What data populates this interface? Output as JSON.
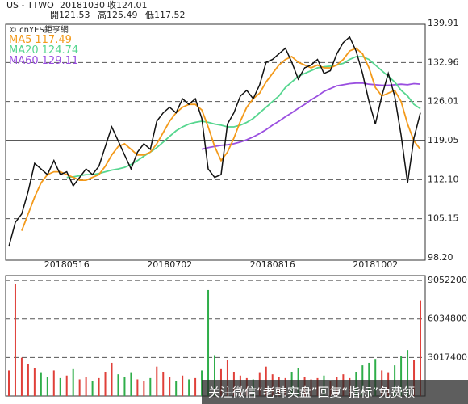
{
  "chart_data": {
    "type": "stock",
    "header": {
      "symbol": "US - TTWO",
      "date": "20181030",
      "close": "收124.01",
      "open": "開121.53",
      "high": "高125.49",
      "low": "低117.52"
    },
    "source": "© cnYES鉅亨網",
    "watermark": "关注微信“老韩实盘”回复“指标”免费领",
    "categories": [
      null,
      null,
      null,
      null,
      null,
      null,
      null,
      null,
      null,
      "20180516",
      null,
      null,
      null,
      null,
      null,
      null,
      null,
      null,
      null,
      null,
      null,
      null,
      null,
      null,
      null,
      "20180702",
      null,
      null,
      null,
      null,
      null,
      null,
      null,
      null,
      null,
      null,
      null,
      null,
      null,
      null,
      null,
      "20180816",
      null,
      null,
      null,
      null,
      null,
      null,
      null,
      null,
      null,
      null,
      null,
      null,
      null,
      null,
      null,
      "20181002",
      null,
      null,
      null,
      null,
      null,
      null,
      null
    ],
    "ylim": [
      98.2,
      139.91
    ],
    "yticks": [
      {
        "value": 98.2,
        "label": "98.20"
      },
      105.15,
      {
        "value": 112.1,
        "label": "112.10"
      },
      119.05,
      126.01,
      132.96,
      139.91
    ],
    "baseline": 119.05,
    "grid": true,
    "series": [
      {
        "name": "Close",
        "color": "#111111",
        "values": [
          100.2,
          104.5,
          106,
          110,
          115,
          114,
          113,
          115.5,
          113,
          113.5,
          111,
          112.5,
          114,
          113,
          114.5,
          118,
          121.5,
          119,
          116.5,
          114,
          117,
          118.5,
          117.5,
          122.5,
          124,
          125,
          124,
          126.5,
          125.5,
          126.5,
          123,
          114,
          112.5,
          113,
          122,
          124,
          127,
          128,
          126.5,
          129,
          133,
          133.5,
          134.5,
          135.5,
          133,
          130,
          132,
          132.5,
          133.5,
          131,
          131.5,
          134.5,
          136.5,
          137.5,
          135,
          131,
          126,
          122,
          127,
          131,
          127,
          120,
          111.5,
          119.5,
          124
        ]
      },
      {
        "name": "MA5",
        "color": "#f39a1b",
        "values": [
          null,
          null,
          103,
          106,
          109,
          111.5,
          113,
          113.5,
          113.5,
          113,
          112.5,
          112,
          112,
          112.5,
          113,
          114.5,
          116.5,
          118,
          118.5,
          117.5,
          116.5,
          116.5,
          117,
          118.5,
          120.5,
          122.5,
          124,
          125,
          125.5,
          125.5,
          124.5,
          121.5,
          118,
          115.5,
          117,
          119.5,
          122.5,
          125,
          126.5,
          127.5,
          129.5,
          131,
          132.5,
          133.5,
          134,
          133,
          132.5,
          132,
          132.5,
          132,
          132,
          132.5,
          133.5,
          135,
          135.5,
          134.5,
          132,
          128.5,
          127,
          127.5,
          128,
          126,
          122,
          119,
          117.49
        ]
      },
      {
        "name": "MA20",
        "color": "#56d68f",
        "values": [
          null,
          null,
          null,
          null,
          null,
          null,
          null,
          null,
          null,
          112.5,
          112.6,
          112.8,
          113,
          113,
          113.2,
          113.5,
          113.8,
          114,
          114.3,
          114.8,
          115.5,
          116.3,
          117,
          117.8,
          118.8,
          119.8,
          120.8,
          121.5,
          122,
          122.3,
          122.5,
          122.3,
          122,
          121.8,
          121.5,
          121.5,
          121.8,
          122.3,
          123,
          124,
          125,
          126,
          127,
          128.5,
          129.5,
          130.5,
          131,
          131.5,
          132,
          132.2,
          132.3,
          132.5,
          132.8,
          133.5,
          134,
          134,
          133.5,
          132.5,
          131.5,
          130.5,
          129.5,
          128,
          127,
          125.5,
          124.74
        ]
      },
      {
        "name": "MA60",
        "color": "#9a4fe0",
        "values": [
          null,
          null,
          null,
          null,
          null,
          null,
          null,
          null,
          null,
          null,
          null,
          null,
          null,
          null,
          null,
          null,
          null,
          null,
          null,
          null,
          null,
          null,
          null,
          null,
          null,
          null,
          null,
          null,
          null,
          null,
          117.5,
          117.8,
          118,
          118.2,
          118.3,
          118.5,
          118.8,
          119.2,
          119.7,
          120.3,
          121,
          121.8,
          122.5,
          123.3,
          124,
          124.8,
          125.5,
          126.3,
          127,
          127.8,
          128.3,
          128.8,
          129,
          129.2,
          129.3,
          129.3,
          129.1,
          129,
          128.9,
          128.9,
          129,
          129.1,
          129,
          129.2,
          129.11
        ]
      }
    ],
    "volume": {
      "up_color": "#e0403a",
      "down_color": "#2fae4a",
      "ylim": [
        0,
        9437000
      ],
      "yticks": [
        3017400,
        6034800,
        9052200
      ],
      "values": [
        2000000,
        8800000,
        3000000,
        2500000,
        2200000,
        1800000,
        1500000,
        2000000,
        1400000,
        1600000,
        2100000,
        1300000,
        1500000,
        1200000,
        1400000,
        1900000,
        2600000,
        1700000,
        1500000,
        1800000,
        1300000,
        1200000,
        1400000,
        2300000,
        1900000,
        1500000,
        1200000,
        1600000,
        1300000,
        1400000,
        2000000,
        8300000,
        3200000,
        2100000,
        2800000,
        1900000,
        1600000,
        1400000,
        1300000,
        1800000,
        2300000,
        1700000,
        1500000,
        1400000,
        1900000,
        2200000,
        1500000,
        1300000,
        1400000,
        1600000,
        1200000,
        1500000,
        1700000,
        1400000,
        1900000,
        2400000,
        2600000,
        2900000,
        2000000,
        1800000,
        2400000,
        3100000,
        3600000,
        2800000,
        7500000
      ]
    }
  }
}
